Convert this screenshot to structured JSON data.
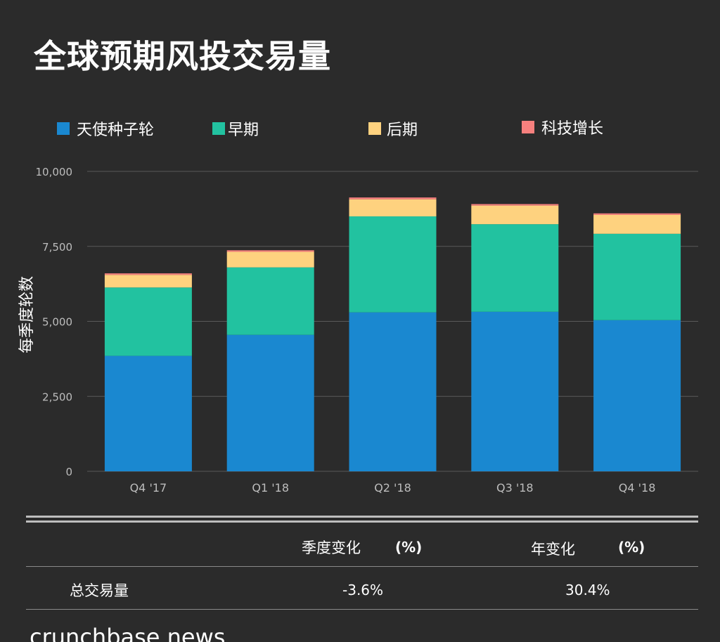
{
  "title": "全球预期风投交易量",
  "colors": {
    "background": "#2b2b2b",
    "angel_seed": "#1a88d0",
    "early": "#22c2a0",
    "late": "#fed27f",
    "tech_growth": "#f6807e",
    "gridline": "#5a5a5a",
    "axis_text": "#bdbdbd"
  },
  "chart_data": {
    "type": "bar",
    "stacked": true,
    "categories": [
      "Q4 '17",
      "Q1 '18",
      "Q2 '18",
      "Q3 '18",
      "Q4 '18"
    ],
    "series": [
      {
        "name": "天使种子轮",
        "color": "#1a88d0",
        "values": [
          3850,
          4550,
          5300,
          5320,
          5040
        ]
      },
      {
        "name": "早期",
        "color": "#22c2a0",
        "values": [
          2280,
          2250,
          3200,
          2920,
          2880
        ]
      },
      {
        "name": "后期",
        "color": "#fed27f",
        "values": [
          420,
          520,
          570,
          620,
          630
        ]
      },
      {
        "name": "科技增长",
        "color": "#f6807e",
        "values": [
          50,
          50,
          60,
          50,
          50
        ]
      }
    ],
    "ylabel": "每季度轮数",
    "xlabel": "",
    "ylim": [
      0,
      10000
    ],
    "yticks": [
      0,
      2500,
      5000,
      7500,
      10000
    ],
    "ytick_labels": [
      "0",
      "2,500",
      "5,000",
      "7,500",
      "10,000"
    ],
    "grid": true,
    "legend": "top"
  },
  "table": {
    "headers": {
      "qoq_label": "季度变化",
      "qoq_unit": "(%)",
      "yoy_label": "年变化",
      "yoy_unit": "(%)"
    },
    "rows": [
      {
        "label": "总交易量",
        "qoq": "-3.6%",
        "yoy": "30.4%"
      }
    ]
  },
  "brand": "crunchbase news"
}
